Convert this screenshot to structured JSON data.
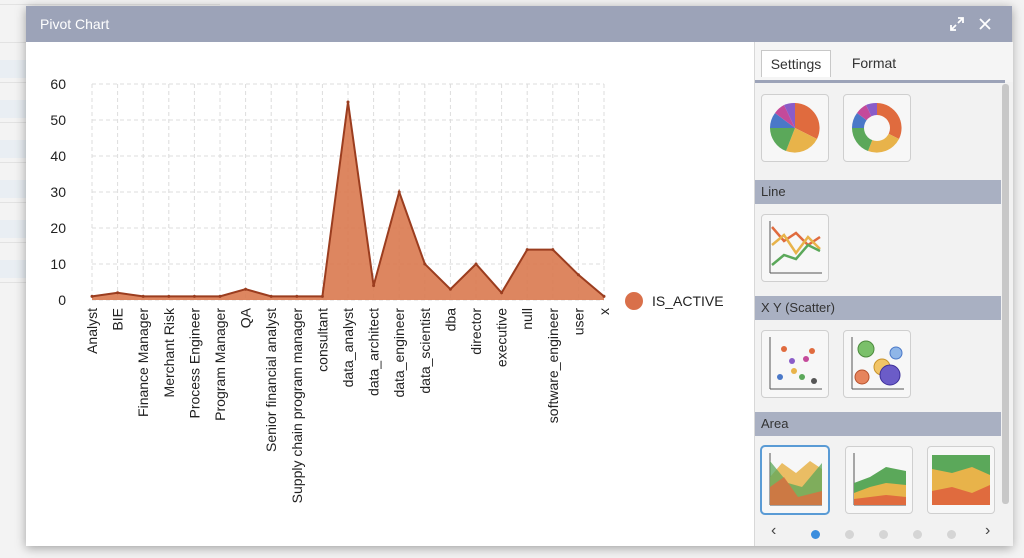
{
  "window": {
    "title": "Pivot Chart",
    "icons": [
      "expand-icon",
      "close-icon"
    ]
  },
  "tabs": [
    {
      "label": "Settings",
      "active": true
    },
    {
      "label": "Format",
      "active": false
    }
  ],
  "sections": {
    "line": "Line",
    "scatter": "X Y (Scatter)",
    "area": "Area"
  },
  "pager": {
    "pages": 5,
    "active": 0,
    "prev_icon": "chevron-left-icon",
    "next_icon": "chevron-right-icon"
  },
  "legend": {
    "label": "IS_ACTIVE",
    "color": "#d9704a"
  },
  "chart_data": {
    "type": "area",
    "categories": [
      "Analyst",
      "BIE",
      "Finance Manager",
      "Merchant Risk",
      "Process Engineer",
      "Program Manager",
      "QA",
      "Senior financial analyst",
      "Supply chain program manager",
      "consultant",
      "data_analyst",
      "data_architect",
      "data_engineer",
      "data_scientist",
      "dba",
      "director",
      "executive",
      "null",
      "software_engineer",
      "user",
      "x"
    ],
    "series": [
      {
        "name": "IS_ACTIVE",
        "values": [
          1,
          2,
          1,
          1,
          1,
          1,
          3,
          1,
          1,
          1,
          55,
          4,
          30,
          10,
          3,
          10,
          2,
          14,
          14,
          7,
          1
        ]
      }
    ],
    "yticks": [
      0,
      10,
      20,
      30,
      40,
      50,
      60
    ],
    "ylim": [
      0,
      60
    ],
    "grid": true,
    "legend_position": "right",
    "fill_color": "#d9794f",
    "line_color": "#9b3d1f"
  }
}
